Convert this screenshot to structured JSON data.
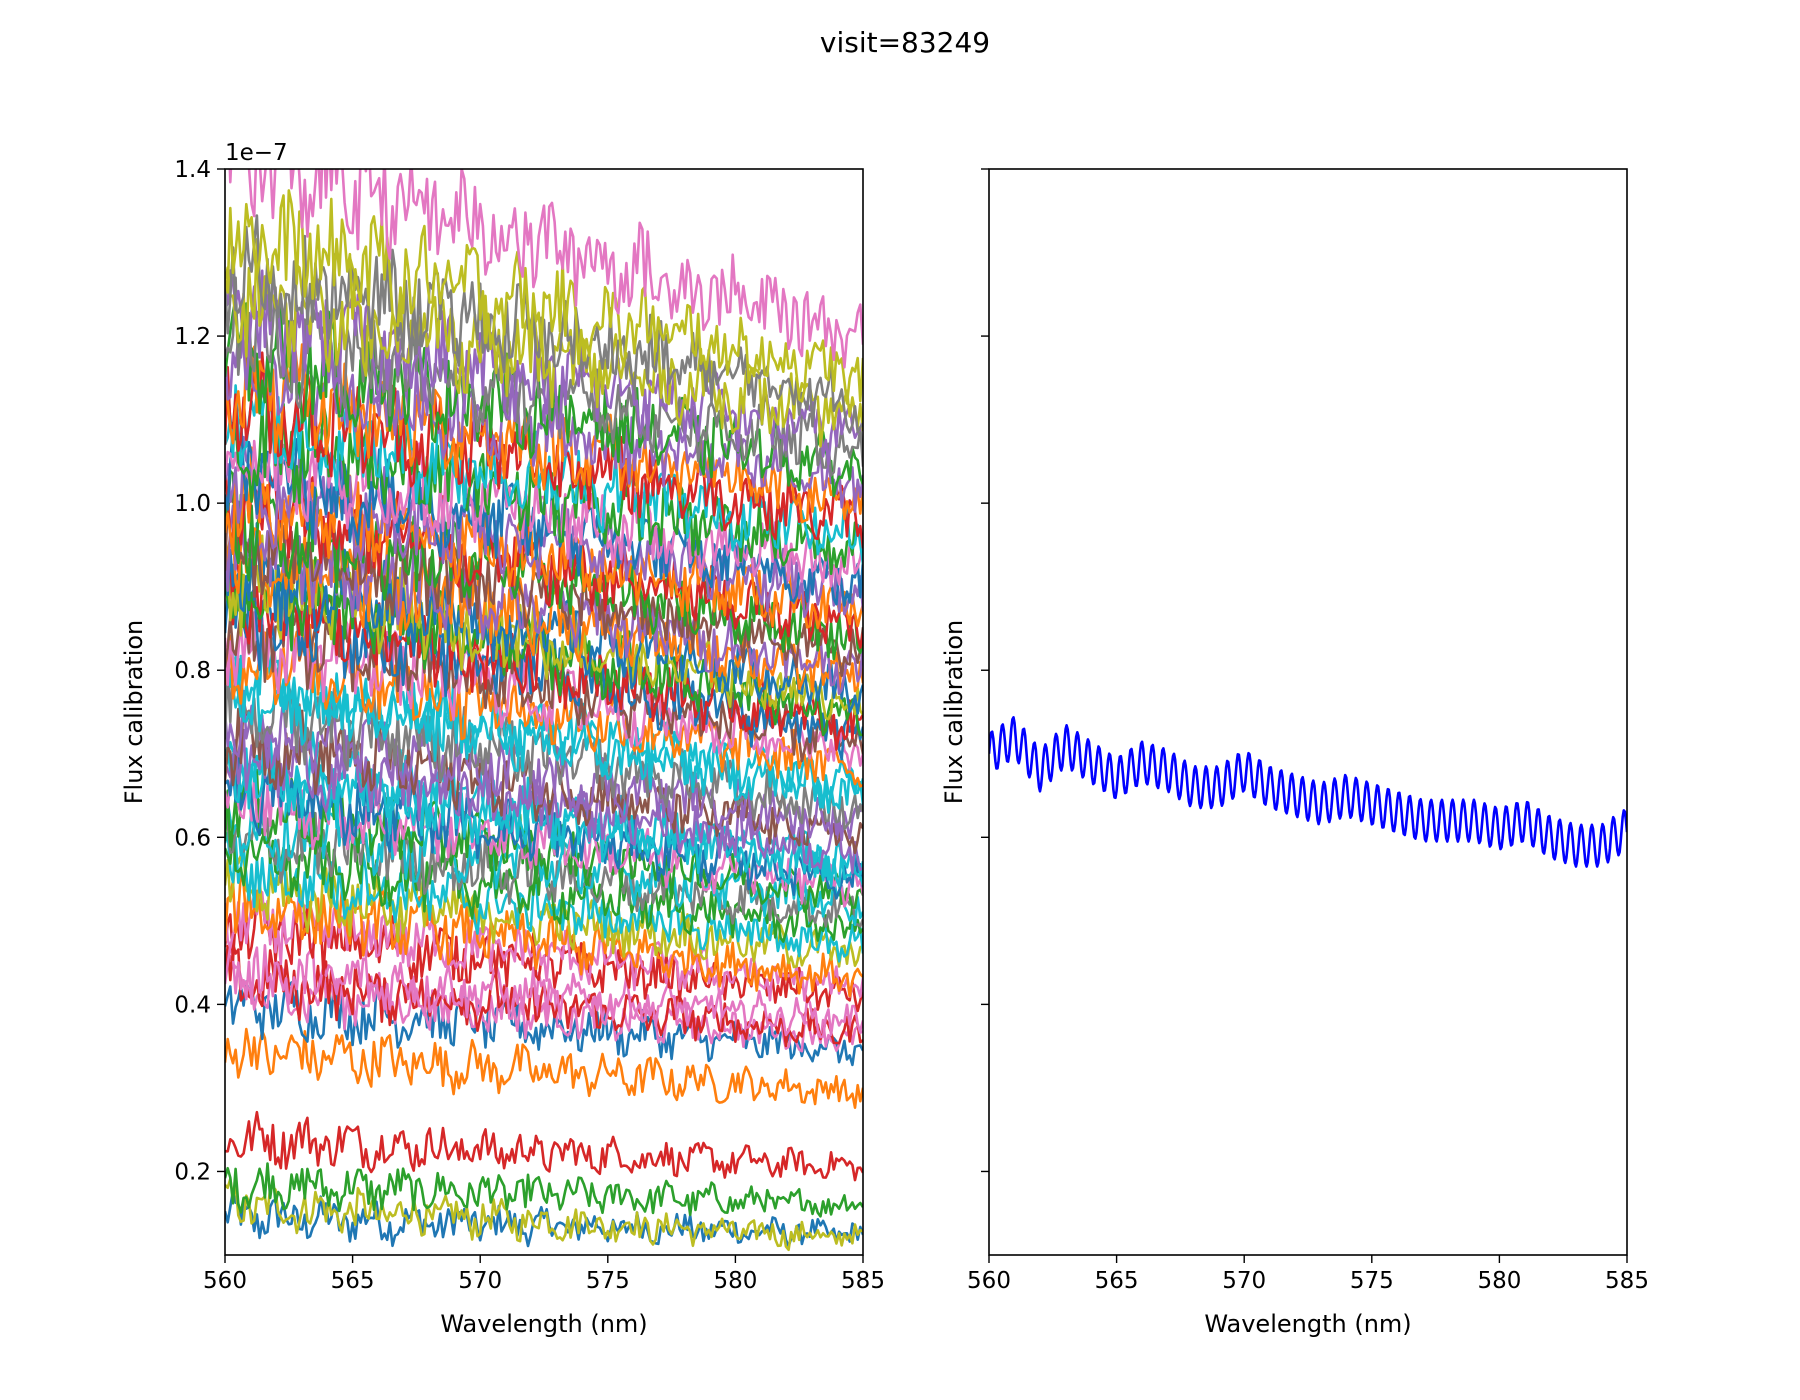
{
  "figure": {
    "title": "visit=83249"
  },
  "chart_data": [
    {
      "type": "line",
      "xlabel": "Wavelength (nm)",
      "ylabel": "Flux calibration",
      "xlim": [
        560,
        585
      ],
      "ylim": [
        0.1,
        1.4
      ],
      "y_offset_label": "1e−7",
      "y_scale_factor": 1e-07,
      "x_ticks": [
        560,
        565,
        570,
        575,
        580,
        585
      ],
      "x_tick_labels": [
        "560",
        "565",
        "570",
        "575",
        "580",
        "585"
      ],
      "y_ticks": [
        0.2,
        0.4,
        0.6,
        0.8,
        1.0,
        1.2,
        1.4
      ],
      "y_tick_labels": [
        "0.2",
        "0.4",
        "0.6",
        "0.8",
        "1.0",
        "1.2",
        "1.4"
      ],
      "grid": false,
      "legend": "none",
      "series": [
        {
          "start": 0.145,
          "end": 0.125,
          "color": "#1f77b4"
        },
        {
          "start": 0.16,
          "end": 0.12,
          "color": "#bcbd22"
        },
        {
          "start": 0.185,
          "end": 0.16,
          "color": "#2ca02c"
        },
        {
          "start": 0.24,
          "end": 0.205,
          "color": "#d62728"
        },
        {
          "start": 0.345,
          "end": 0.295,
          "color": "#ff7f0e"
        },
        {
          "start": 0.4,
          "end": 0.345,
          "color": "#1f77b4"
        },
        {
          "start": 0.42,
          "end": 0.36,
          "color": "#e377c2"
        },
        {
          "start": 0.43,
          "end": 0.365,
          "color": "#d62728"
        },
        {
          "start": 0.44,
          "end": 0.38,
          "color": "#e377c2"
        },
        {
          "start": 0.49,
          "end": 0.41,
          "color": "#d62728"
        },
        {
          "start": 0.5,
          "end": 0.42,
          "color": "#e377c2"
        },
        {
          "start": 0.52,
          "end": 0.43,
          "color": "#ff7f0e"
        },
        {
          "start": 0.54,
          "end": 0.46,
          "color": "#bcbd22"
        },
        {
          "start": 0.56,
          "end": 0.47,
          "color": "#17becf"
        },
        {
          "start": 0.58,
          "end": 0.49,
          "color": "#2ca02c"
        },
        {
          "start": 0.6,
          "end": 0.51,
          "color": "#7f7f7f"
        },
        {
          "start": 0.62,
          "end": 0.52,
          "color": "#17becf"
        },
        {
          "start": 0.64,
          "end": 0.53,
          "color": "#2ca02c"
        },
        {
          "start": 0.65,
          "end": 0.54,
          "color": "#e377c2"
        },
        {
          "start": 0.66,
          "end": 0.55,
          "color": "#1f77b4"
        },
        {
          "start": 0.68,
          "end": 0.56,
          "color": "#17becf"
        },
        {
          "start": 0.69,
          "end": 0.57,
          "color": "#17becf"
        },
        {
          "start": 0.7,
          "end": 0.58,
          "color": "#9467bd"
        },
        {
          "start": 0.72,
          "end": 0.6,
          "color": "#8c564b"
        },
        {
          "start": 0.73,
          "end": 0.615,
          "color": "#9467bd"
        },
        {
          "start": 0.76,
          "end": 0.63,
          "color": "#7f7f7f"
        },
        {
          "start": 0.78,
          "end": 0.65,
          "color": "#17becf"
        },
        {
          "start": 0.8,
          "end": 0.66,
          "color": "#17becf"
        },
        {
          "start": 0.82,
          "end": 0.68,
          "color": "#ff7f0e"
        },
        {
          "start": 0.84,
          "end": 0.7,
          "color": "#e377c2"
        },
        {
          "start": 0.85,
          "end": 0.71,
          "color": "#8c564b"
        },
        {
          "start": 0.87,
          "end": 0.72,
          "color": "#1f77b4"
        },
        {
          "start": 0.88,
          "end": 0.73,
          "color": "#d62728"
        },
        {
          "start": 0.9,
          "end": 0.745,
          "color": "#2ca02c"
        },
        {
          "start": 0.91,
          "end": 0.76,
          "color": "#bcbd22"
        },
        {
          "start": 0.92,
          "end": 0.77,
          "color": "#1f77b4"
        },
        {
          "start": 0.94,
          "end": 0.79,
          "color": "#ff7f0e"
        },
        {
          "start": 0.95,
          "end": 0.8,
          "color": "#9467bd"
        },
        {
          "start": 0.96,
          "end": 0.82,
          "color": "#8c564b"
        },
        {
          "start": 0.98,
          "end": 0.84,
          "color": "#2ca02c"
        },
        {
          "start": 1.0,
          "end": 0.85,
          "color": "#d62728"
        },
        {
          "start": 1.01,
          "end": 0.87,
          "color": "#ff7f0e"
        },
        {
          "start": 1.02,
          "end": 0.89,
          "color": "#9467bd"
        },
        {
          "start": 1.04,
          "end": 0.9,
          "color": "#1f77b4"
        },
        {
          "start": 1.06,
          "end": 0.92,
          "color": "#e377c2"
        },
        {
          "start": 1.08,
          "end": 0.94,
          "color": "#2ca02c"
        },
        {
          "start": 1.1,
          "end": 0.96,
          "color": "#17becf"
        },
        {
          "start": 1.12,
          "end": 0.98,
          "color": "#d62728"
        },
        {
          "start": 1.14,
          "end": 1.0,
          "color": "#ff7f0e"
        },
        {
          "start": 1.16,
          "end": 1.02,
          "color": "#9467bd"
        },
        {
          "start": 1.18,
          "end": 1.04,
          "color": "#2ca02c"
        },
        {
          "start": 1.2,
          "end": 1.06,
          "color": "#7f7f7f"
        },
        {
          "start": 1.22,
          "end": 1.08,
          "color": "#9467bd"
        },
        {
          "start": 1.25,
          "end": 1.1,
          "color": "#bcbd22"
        },
        {
          "start": 1.28,
          "end": 1.12,
          "color": "#7f7f7f"
        },
        {
          "start": 1.32,
          "end": 1.15,
          "color": "#bcbd22"
        },
        {
          "start": 1.42,
          "end": 1.2,
          "color": "#e377c2"
        }
      ]
    },
    {
      "type": "line",
      "xlabel": "Wavelength (nm)",
      "ylabel": "Flux calibration",
      "xlim": [
        560,
        585
      ],
      "ylim": [
        0.1,
        1.4
      ],
      "x_ticks": [
        560,
        565,
        570,
        575,
        580,
        585
      ],
      "x_tick_labels": [
        "560",
        "565",
        "570",
        "575",
        "580",
        "585"
      ],
      "y_ticks": [
        0.2,
        0.4,
        0.6,
        0.8,
        1.0,
        1.2,
        1.4
      ],
      "shared_y": true,
      "grid": false,
      "legend": "none",
      "series": [
        {
          "color": "#0000ff",
          "x": [
            560,
            561,
            562,
            563,
            564,
            565,
            566,
            567,
            568,
            569,
            570,
            571,
            572,
            573,
            574,
            575,
            576,
            577,
            578,
            579,
            580,
            581,
            582,
            583,
            584,
            585
          ],
          "y": [
            0.7,
            0.72,
            0.68,
            0.71,
            0.69,
            0.67,
            0.69,
            0.68,
            0.66,
            0.66,
            0.68,
            0.66,
            0.65,
            0.64,
            0.65,
            0.64,
            0.63,
            0.62,
            0.62,
            0.62,
            0.61,
            0.62,
            0.6,
            0.59,
            0.59,
            0.61
          ],
          "oscillation_amplitude": 0.025,
          "oscillation_period": 0.42
        }
      ]
    }
  ]
}
